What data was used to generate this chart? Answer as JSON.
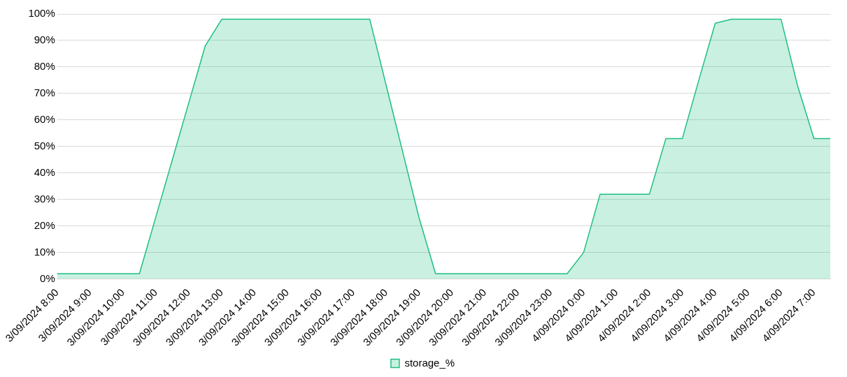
{
  "chart_data": {
    "type": "area",
    "categories": [
      "3/09/2024 8:00",
      null,
      "3/09/2024 9:00",
      null,
      "3/09/2024 10:00",
      null,
      "3/09/2024 11:00",
      null,
      "3/09/2024 12:00",
      null,
      "3/09/2024 13:00",
      null,
      "3/09/2024 14:00",
      null,
      "3/09/2024 15:00",
      null,
      "3/09/2024 16:00",
      null,
      "3/09/2024 17:00",
      null,
      "3/09/2024 18:00",
      null,
      "3/09/2024 19:00",
      null,
      "3/09/2024 20:00",
      null,
      "3/09/2024 21:00",
      null,
      "3/09/2024 22:00",
      null,
      "3/09/2024 23:00",
      null,
      "4/09/2024 0:00",
      null,
      "4/09/2024 1:00",
      null,
      "4/09/2024 2:00",
      null,
      "4/09/2024 3:00",
      null,
      "4/09/2024 4:00",
      null,
      "4/09/2024 5:00",
      null,
      "4/09/2024 6:00",
      null,
      "4/09/2024 7:00",
      null
    ],
    "series": [
      {
        "name": "storage_%",
        "color": "#1fbf80",
        "values": [
          2,
          2,
          2,
          2,
          2,
          2,
          23.5,
          45,
          66.5,
          88,
          98,
          98,
          98,
          98,
          98,
          98,
          98,
          98,
          98,
          98,
          73,
          48,
          23,
          2,
          2,
          2,
          2,
          2,
          2,
          2,
          2,
          2,
          10,
          32,
          32,
          32,
          32,
          53,
          53,
          75,
          96.5,
          98,
          98,
          98,
          98,
          73,
          53,
          53
        ]
      }
    ],
    "ylim": [
      0,
      100
    ],
    "yticks": [
      {
        "value": 0,
        "label": "0%"
      },
      {
        "value": 10,
        "label": "10%"
      },
      {
        "value": 20,
        "label": "20%"
      },
      {
        "value": 30,
        "label": "30%"
      },
      {
        "value": 40,
        "label": "40%"
      },
      {
        "value": 50,
        "label": "50%"
      },
      {
        "value": 60,
        "label": "60%"
      },
      {
        "value": 70,
        "label": "70%"
      },
      {
        "value": 80,
        "label": "80%"
      },
      {
        "value": 90,
        "label": "90%"
      },
      {
        "value": 100,
        "label": "100%"
      }
    ],
    "grid": "y",
    "legend": "bottom",
    "marker": "none"
  }
}
